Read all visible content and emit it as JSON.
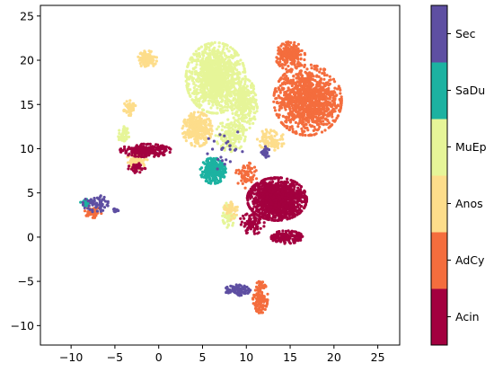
{
  "chart_data": {
    "type": "scatter",
    "title": "",
    "xlabel": "",
    "ylabel": "",
    "xlim": [
      -13.5,
      27.5
    ],
    "ylim": [
      -12.2,
      26.2
    ],
    "x_ticks": [
      -10,
      -5,
      0,
      5,
      10,
      15,
      20,
      25
    ],
    "y_ticks": [
      -10,
      -5,
      0,
      5,
      10,
      15,
      20,
      25
    ],
    "grid": false,
    "legend": "colorbar-right",
    "colorbar": {
      "categories": [
        "Acin",
        "AdCy",
        "Anos",
        "MuEp",
        "SaDu",
        "Sec"
      ],
      "colors": [
        "#a3003f",
        "#f46d3d",
        "#fddd8b",
        "#e6f598",
        "#1cb2a1",
        "#5e4fa2"
      ]
    },
    "clusters": [
      {
        "category": "MuEp",
        "center": [
          6.5,
          18.0
        ],
        "spread": [
          2.8,
          3.3
        ],
        "count": 1100
      },
      {
        "category": "MuEp",
        "center": [
          9.8,
          15.0
        ],
        "spread": [
          1.2,
          2.4
        ],
        "count": 280
      },
      {
        "category": "MuEp",
        "center": [
          8.2,
          11.5
        ],
        "spread": [
          1.4,
          1.5
        ],
        "count": 160
      },
      {
        "category": "MuEp",
        "center": [
          -4.0,
          11.5
        ],
        "spread": [
          0.5,
          0.9
        ],
        "count": 40
      },
      {
        "category": "MuEp",
        "center": [
          8.0,
          2.5
        ],
        "spread": [
          0.6,
          1.2
        ],
        "count": 60
      },
      {
        "category": "AdCy",
        "center": [
          17.0,
          15.5
        ],
        "spread": [
          3.2,
          3.3
        ],
        "count": 1100
      },
      {
        "category": "AdCy",
        "center": [
          15.0,
          20.5
        ],
        "spread": [
          1.4,
          1.3
        ],
        "count": 220
      },
      {
        "category": "AdCy",
        "center": [
          11.6,
          -6.8
        ],
        "spread": [
          0.7,
          1.5
        ],
        "count": 130
      },
      {
        "category": "AdCy",
        "center": [
          -7.5,
          2.8
        ],
        "spread": [
          0.8,
          0.5
        ],
        "count": 60
      },
      {
        "category": "AdCy",
        "center": [
          10.0,
          7.0
        ],
        "spread": [
          1.0,
          1.2
        ],
        "count": 70
      },
      {
        "category": "Anos",
        "center": [
          -1.3,
          20.1
        ],
        "spread": [
          0.9,
          0.8
        ],
        "count": 110
      },
      {
        "category": "Anos",
        "center": [
          -3.3,
          14.6
        ],
        "spread": [
          0.6,
          0.7
        ],
        "count": 60
      },
      {
        "category": "Anos",
        "center": [
          4.4,
          12.2
        ],
        "spread": [
          1.4,
          1.6
        ],
        "count": 300
      },
      {
        "category": "Anos",
        "center": [
          -2.5,
          8.6
        ],
        "spread": [
          1.0,
          0.8
        ],
        "count": 70
      },
      {
        "category": "Anos",
        "center": [
          12.8,
          11.0
        ],
        "spread": [
          1.3,
          1.0
        ],
        "count": 90
      },
      {
        "category": "Anos",
        "center": [
          8.2,
          3.2
        ],
        "spread": [
          0.7,
          1.0
        ],
        "count": 45
      },
      {
        "category": "SaDu",
        "center": [
          6.2,
          7.5
        ],
        "spread": [
          1.2,
          1.2
        ],
        "count": 320
      },
      {
        "category": "SaDu",
        "center": [
          -8.2,
          3.9
        ],
        "spread": [
          0.6,
          0.3
        ],
        "count": 30
      },
      {
        "category": "Acin",
        "center": [
          13.5,
          4.3
        ],
        "spread": [
          2.8,
          2.0
        ],
        "count": 1300
      },
      {
        "category": "Acin",
        "center": [
          14.6,
          0.0
        ],
        "spread": [
          1.5,
          0.6
        ],
        "count": 160
      },
      {
        "category": "Acin",
        "center": [
          -1.5,
          9.8
        ],
        "spread": [
          2.4,
          0.6
        ],
        "count": 260
      },
      {
        "category": "Acin",
        "center": [
          -2.5,
          7.8
        ],
        "spread": [
          0.8,
          0.5
        ],
        "count": 50
      },
      {
        "category": "Acin",
        "center": [
          10.6,
          1.5
        ],
        "spread": [
          1.2,
          1.0
        ],
        "count": 90
      },
      {
        "category": "Sec",
        "center": [
          9.0,
          -6.0
        ],
        "spread": [
          1.2,
          0.5
        ],
        "count": 80
      },
      {
        "category": "Sec",
        "center": [
          -7.2,
          3.8
        ],
        "spread": [
          1.2,
          0.8
        ],
        "count": 60
      },
      {
        "category": "Sec",
        "center": [
          12.2,
          9.6
        ],
        "spread": [
          0.4,
          0.6
        ],
        "count": 30
      },
      {
        "category": "Sec",
        "center": [
          -4.9,
          3.0
        ],
        "spread": [
          0.3,
          0.2
        ],
        "count": 12
      },
      {
        "category": "Sec",
        "center": [
          7.5,
          10.0
        ],
        "spread": [
          2.0,
          2.0
        ],
        "count": 25
      }
    ]
  }
}
